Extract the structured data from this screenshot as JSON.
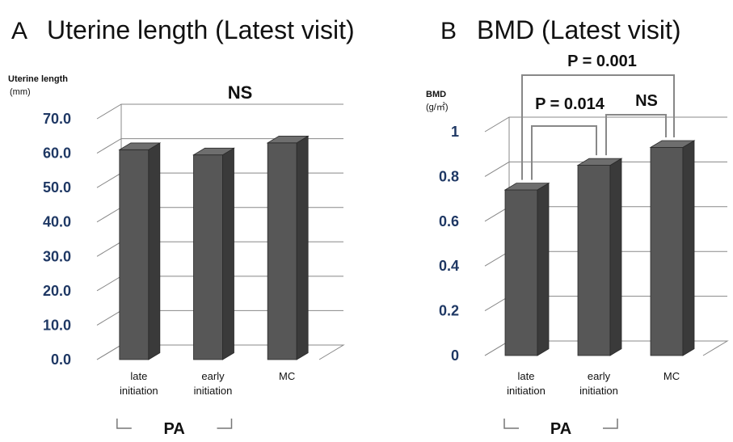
{
  "chart_data": [
    {
      "type": "bar",
      "panel": "A",
      "title": "Uterine length (Latest visit)",
      "ylabel": "Uterine length",
      "yunit": "(mm)",
      "categories": [
        "late initiation",
        "early initiation",
        "MC"
      ],
      "category_lines": [
        [
          "late",
          "initiation"
        ],
        [
          "early",
          "initiation"
        ],
        [
          "MC"
        ]
      ],
      "values": [
        61.0,
        59.5,
        63.0
      ],
      "ylim": [
        0,
        70
      ],
      "yticks": [
        "0.0",
        "10.0",
        "20.0",
        "30.0",
        "40.0",
        "50.0",
        "60.0",
        "70.0"
      ],
      "annotations": [
        "NS"
      ],
      "group_label": "PA",
      "grid": true
    },
    {
      "type": "bar",
      "panel": "B",
      "title": "BMD (Latest visit)",
      "ylabel": "BMD",
      "yunit": "(g/㎡)",
      "categories": [
        "late initiation",
        "early initiation",
        "MC"
      ],
      "category_lines": [
        [
          "late",
          "initiation"
        ],
        [
          "early",
          "initiation"
        ],
        [
          "MC"
        ]
      ],
      "values": [
        0.74,
        0.85,
        0.93
      ],
      "ylim": [
        0,
        1
      ],
      "yticks": [
        "0",
        "0.2",
        "0.4",
        "0.6",
        "0.8",
        "1"
      ],
      "annotations": [
        "P = 0.001",
        "P = 0.014",
        "NS"
      ],
      "group_label": "PA",
      "grid": true
    }
  ],
  "colors": {
    "bar_front": "#575757",
    "bar_side": "#3a3a3a",
    "bar_top": "#6e6e6e",
    "grid": "#888888",
    "tick_text": "#1f3864"
  }
}
